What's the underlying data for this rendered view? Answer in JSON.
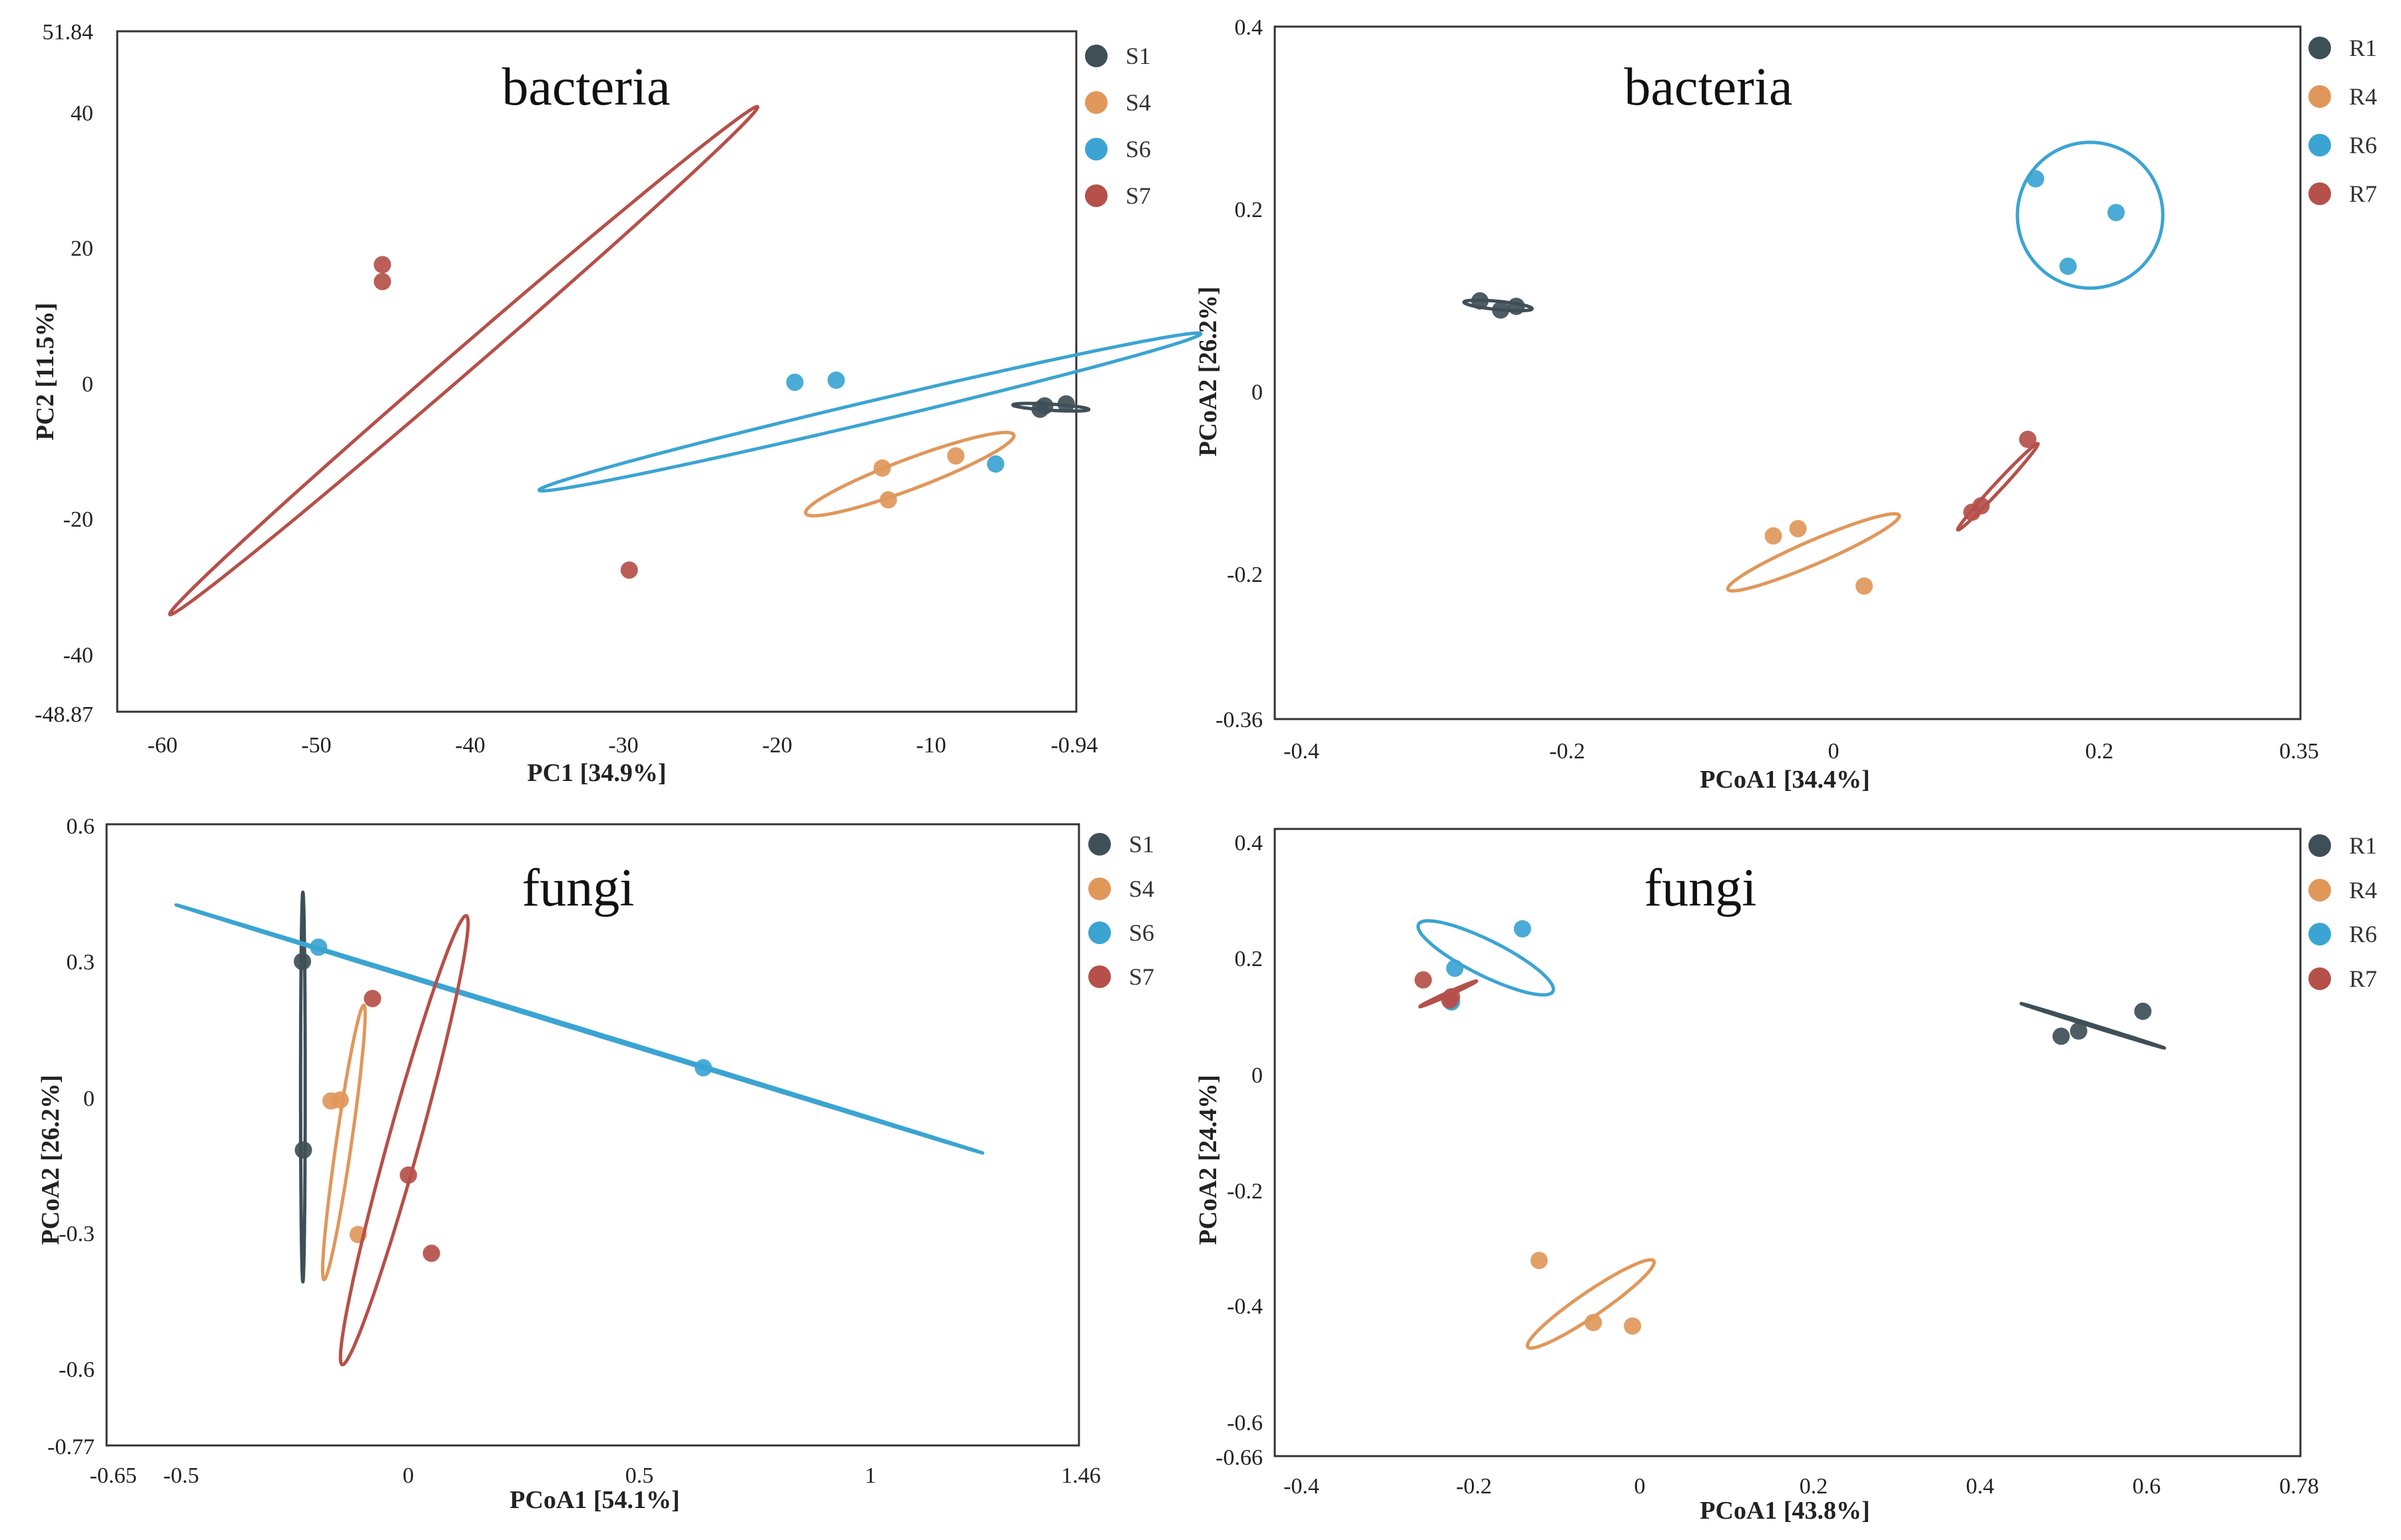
{
  "colors": {
    "c1": "#3f4f57",
    "c4": "#e0975a",
    "c6": "#3ba4d2",
    "c7": "#b5504a"
  },
  "chart_data": [
    {
      "type": "scatter",
      "title": "bacteria",
      "xlabel": "PC1 [34.9%]",
      "ylabel": "PC2 [11.5%]",
      "xlim": [
        -63.5,
        -0.94
      ],
      "ylim": [
        -48.87,
        51.84
      ],
      "xtick_labels": [
        "-60",
        "-50",
        "-40",
        "-30",
        "-20",
        "-10",
        "-0.94"
      ],
      "ytick_labels": [
        "51.84",
        "40",
        "20",
        "0",
        "-20",
        "-40",
        "-48.87"
      ],
      "legend": [
        "S1",
        "S4",
        "S6",
        "S7"
      ],
      "legend_position": "right",
      "series": [
        {
          "name": "S1",
          "color_key": "c1",
          "points": [
            [
              -3.0,
              -3.6
            ],
            [
              -3.3,
              -4.1
            ],
            [
              -1.6,
              -3.3
            ]
          ],
          "ellipse": {
            "cx": -2.6,
            "cy": -3.8,
            "rx": 2.5,
            "ry": 0.45,
            "angle_deg": -8
          }
        },
        {
          "name": "S4",
          "color_key": "c4",
          "points": [
            [
              -13.6,
              -12.8
            ],
            [
              -13.2,
              -17.5
            ],
            [
              -8.8,
              -11.0
            ]
          ],
          "ellipse": {
            "cx": -11.8,
            "cy": -13.7,
            "rx": 9.0,
            "ry": 1.8,
            "angle_deg": 42
          }
        },
        {
          "name": "S6",
          "color_key": "c6",
          "points": [
            [
              -19.3,
              -0.1
            ],
            [
              -16.6,
              0.2
            ],
            [
              -6.2,
              -12.2
            ]
          ],
          "ellipse": {
            "cx": -14.4,
            "cy": -4.5,
            "rx": 24.5,
            "ry": 1.4,
            "angle_deg": 28.3
          }
        },
        {
          "name": "S7",
          "color_key": "c7",
          "points": [
            [
              -46.2,
              17.3
            ],
            [
              -46.2,
              14.8
            ],
            [
              -30.1,
              -27.9
            ]
          ],
          "ellipse": {
            "cx": -40.9,
            "cy": 3.1,
            "rx": 42.2,
            "ry": 1.04,
            "angle_deg": 63
          }
        }
      ]
    },
    {
      "type": "scatter",
      "title": "bacteria",
      "xlabel": "PCoA1 [34.4%]",
      "ylabel": "PCoA2 [26.2%]",
      "xlim": [
        -0.44,
        0.35
      ],
      "ylim": [
        -0.36,
        0.4
      ],
      "xtick_labels": [
        "-0.4",
        "-0.2",
        "0",
        "0.2",
        "0.35"
      ],
      "ytick_labels": [
        "0.4",
        "0.2",
        "0",
        "-0.2",
        "-0.36"
      ],
      "legend": [
        "R1",
        "R4",
        "R6",
        "R7"
      ],
      "legend_position": "right",
      "series": [
        {
          "name": "R1",
          "color_key": "c1",
          "points": [
            [
              -0.282,
              0.099
            ],
            [
              -0.266,
              0.089
            ],
            [
              -0.254,
              0.093
            ]
          ],
          "ellipse": {
            "cx": -0.268,
            "cy": 0.094,
            "rx": 0.0265,
            "ry": 0.0045,
            "angle_deg": -8
          }
        },
        {
          "name": "R4",
          "color_key": "c4",
          "points": [
            [
              -0.056,
              -0.159
            ],
            [
              -0.037,
              -0.151
            ],
            [
              0.014,
              -0.214
            ]
          ],
          "ellipse": {
            "cx": -0.025,
            "cy": -0.177,
            "rx": 0.0775,
            "ry": 0.012,
            "angle_deg": 32
          }
        },
        {
          "name": "R6",
          "color_key": "c6",
          "points": [
            [
              0.146,
              0.233
            ],
            [
              0.171,
              0.137
            ],
            [
              0.208,
              0.196
            ]
          ],
          "ellipse": {
            "cx": 0.188,
            "cy": 0.193,
            "rx": 0.056,
            "ry": 0.08,
            "angle_deg": 0
          }
        },
        {
          "name": "R7",
          "color_key": "c7",
          "points": [
            [
              0.14,
              -0.053
            ],
            [
              0.104,
              -0.126
            ],
            [
              0.097,
              -0.133
            ]
          ],
          "ellipse": {
            "cx": 0.117,
            "cy": -0.105,
            "rx": 0.0565,
            "ry": 0.0035,
            "angle_deg": 57
          }
        }
      ]
    },
    {
      "type": "scatter",
      "title": "fungi",
      "xlabel": "PCoA1 [54.1%]",
      "ylabel": "PCoA2 [26.2%]",
      "xlim": [
        -0.65,
        1.46
      ],
      "ylim": [
        -0.77,
        0.62
      ],
      "xtick_labels": [
        "-0.65",
        "-0.5",
        "0",
        "0.5",
        "1",
        "1.46"
      ],
      "ytick_labels": [
        "0.6",
        "0.3",
        "0",
        "-0.3",
        "-0.6",
        "-0.77"
      ],
      "legend": [
        "S1",
        "S4",
        "S6",
        "S7"
      ],
      "legend_position": "right",
      "series": [
        {
          "name": "S1",
          "color_key": "c1",
          "points": [
            [
              -0.225,
              0.313
            ],
            [
              -0.223,
              -0.109
            ]
          ],
          "ellipse": {
            "cx": -0.224,
            "cy": 0.032,
            "rx": 0.005,
            "ry": 0.436,
            "angle_deg": 0
          }
        },
        {
          "name": "S4",
          "color_key": "c4",
          "points": [
            [
              -0.163,
              0.001
            ],
            [
              -0.143,
              0.003
            ],
            [
              -0.104,
              -0.298
            ]
          ],
          "ellipse": {
            "cx": -0.135,
            "cy": -0.092,
            "rx": 0.0165,
            "ry": 0.31,
            "angle_deg": -8
          }
        },
        {
          "name": "S6",
          "color_key": "c6",
          "points": [
            [
              -0.19,
              0.345
            ],
            [
              0.645,
              0.075
            ]
          ],
          "ellipse": {
            "cx": 0.376,
            "cy": 0.162,
            "rx": 0.918,
            "ry": 0.0025,
            "angle_deg": -17.6
          }
        },
        {
          "name": "S7",
          "color_key": "c7",
          "points": [
            [
              -0.073,
              0.23
            ],
            [
              0.005,
              -0.165
            ],
            [
              0.055,
              -0.34
            ]
          ],
          "ellipse": {
            "cx": -0.004,
            "cy": -0.087,
            "rx": 0.034,
            "ry": 0.52,
            "angle_deg": -15
          }
        }
      ]
    },
    {
      "type": "scatter",
      "title": "fungi",
      "xlabel": "PCoA1 [43.8%]",
      "ylabel": "PCoA2 [24.4%]",
      "xlim": [
        -0.45,
        0.78
      ],
      "ylim": [
        -0.66,
        0.42
      ],
      "xtick_labels": [
        "-0.4",
        "-0.2",
        "0",
        "0.2",
        "0.4",
        "0.6",
        "0.78"
      ],
      "ytick_labels": [
        "0.4",
        "0.2",
        "0",
        "-0.2",
        "-0.4",
        "-0.6",
        "-0.66"
      ],
      "legend": [
        "R1",
        "R4",
        "R6",
        "R7"
      ],
      "legend_position": "right",
      "series": [
        {
          "name": "R1",
          "color_key": "c1",
          "points": [
            [
              0.493,
              0.063
            ],
            [
              0.514,
              0.072
            ],
            [
              0.591,
              0.106
            ]
          ],
          "ellipse": {
            "cx": 0.531,
            "cy": 0.081,
            "rx": 0.094,
            "ry": 0.0015,
            "angle_deg": -24
          }
        },
        {
          "name": "R4",
          "color_key": "c4",
          "points": [
            [
              -0.133,
              -0.323
            ],
            [
              -0.068,
              -0.43
            ],
            [
              -0.021,
              -0.436
            ]
          ],
          "ellipse": {
            "cx": -0.071,
            "cy": -0.398,
            "rx": 0.106,
            "ry": 0.018,
            "angle_deg": 45
          }
        },
        {
          "name": "R6",
          "color_key": "c6",
          "points": [
            [
              -0.234,
              0.18
            ],
            [
              -0.153,
              0.248
            ],
            [
              -0.238,
              0.122
            ]
          ],
          "ellipse": {
            "cx": -0.197,
            "cy": 0.198,
            "rx": 0.0995,
            "ry": 0.0275,
            "angle_deg": -37
          }
        },
        {
          "name": "R7",
          "color_key": "c7",
          "points": [
            [
              -0.272,
              0.16
            ],
            [
              -0.238,
              0.131
            ],
            [
              -0.24,
              0.125
            ]
          ],
          "ellipse": {
            "cx": -0.242,
            "cy": 0.136,
            "rx": 0.0405,
            "ry": 0.0025,
            "angle_deg": 33
          }
        }
      ]
    }
  ]
}
